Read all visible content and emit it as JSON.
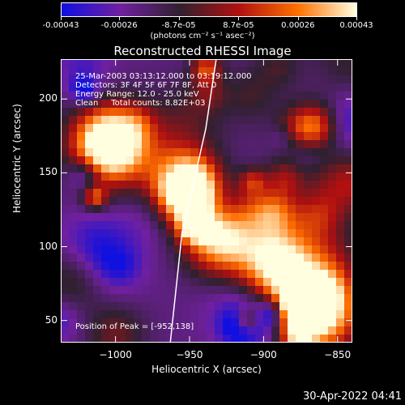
{
  "colorbar": {
    "tick_labels": [
      "-0.00043",
      "-0.00026",
      "-8.7e-05",
      "8.7e-05",
      "0.00026",
      "0.00043"
    ],
    "tick_values": [
      -0.00043,
      -0.00026,
      -8.7e-05,
      8.7e-05,
      0.00026,
      0.00043
    ],
    "units": "(photons cm⁻² s⁻¹ asec⁻²)",
    "colors": [
      "#1010e0",
      "#7020a0",
      "#302030",
      "#b01010",
      "#ff7000",
      "#ffffe0"
    ]
  },
  "chart_data": {
    "type": "heatmap",
    "title": "Reconstructed RHESSI Image",
    "xlabel": "Heliocentric X (arcsec)",
    "ylabel": "Heliocentric Y (arcsec)",
    "xlim": [
      -1037,
      -840
    ],
    "ylim": [
      35,
      227
    ],
    "x_ticks": [
      -1000,
      -950,
      -900,
      -850
    ],
    "y_ticks": [
      50,
      100,
      150,
      200
    ],
    "x_tick_labels": [
      "−1000",
      "−950",
      "−900",
      "−850"
    ],
    "y_tick_labels": [
      "50",
      "100",
      "150",
      "200"
    ],
    "peak": [
      -952,
      138
    ],
    "limb_curve": [
      [
        -963,
        35
      ],
      [
        -955,
        110
      ],
      [
        -948,
        140
      ],
      [
        -939,
        180
      ],
      [
        -932,
        227
      ]
    ],
    "annotations": {
      "time_range": "25-Mar-2003 03:13:12.000 to 03:19:12.000",
      "detectors": "Detectors: 3F 4F 5F 6F 7F 8F, Att 0",
      "energy_range": "Energy Range: 12.0 - 25.0 keV",
      "method": "Clean     Total counts: 8.82E+03",
      "peak_position": "Position of Peak = [-952,138]"
    }
  },
  "timestamp": "30-Apr-2022 04:41"
}
